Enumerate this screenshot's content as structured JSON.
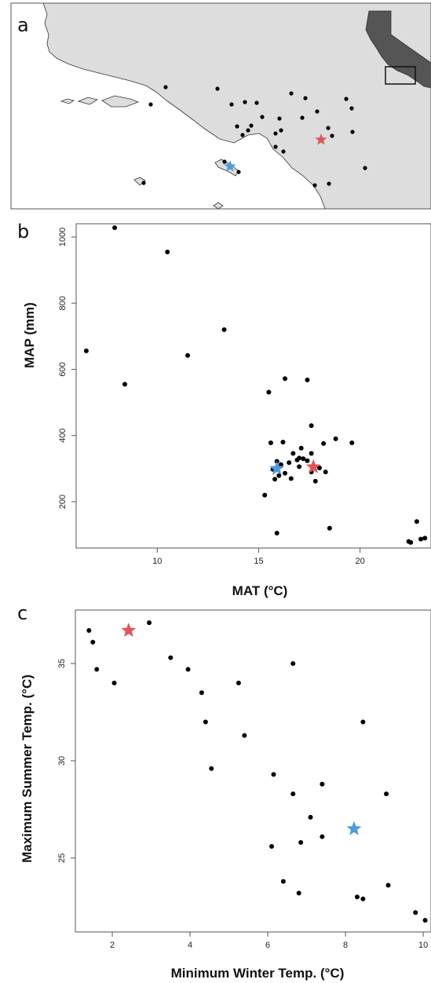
{
  "panel_labels": {
    "a": "a",
    "b": "b",
    "c": "c"
  },
  "colors": {
    "red_star": "#e05555",
    "blue_star": "#4a9be0",
    "points": "#000000",
    "land": "#dddddd",
    "california": "#555555"
  },
  "chart_data": [
    {
      "type": "map",
      "panel": "a",
      "sites": [
        [
          211,
          111
        ],
        [
          192,
          133
        ],
        [
          277,
          113
        ],
        [
          295,
          133
        ],
        [
          312,
          130
        ],
        [
          327,
          131
        ],
        [
          302,
          161
        ],
        [
          320,
          160
        ],
        [
          309,
          172
        ],
        [
          316,
          166
        ],
        [
          334,
          149
        ],
        [
          356,
          151
        ],
        [
          371,
          119
        ],
        [
          389,
          125
        ],
        [
          385,
          150
        ],
        [
          404,
          142
        ],
        [
          351,
          170
        ],
        [
          358,
          166
        ],
        [
          351,
          187
        ],
        [
          361,
          193
        ],
        [
          418,
          163
        ],
        [
          423,
          173
        ],
        [
          441,
          126
        ],
        [
          448,
          138
        ],
        [
          449,
          168
        ],
        [
          304,
          219
        ],
        [
          465,
          214
        ],
        [
          419,
          234
        ],
        [
          401,
          236
        ],
        [
          183,
          233
        ],
        [
          286,
          206
        ]
      ],
      "red_star": [
        409,
        178
      ],
      "blue_star": [
        293,
        212
      ]
    },
    {
      "type": "scatter",
      "panel": "b",
      "xlabel": "MAT (°C)",
      "ylabel": "MAP (mm)",
      "xlim": [
        6,
        23.5
      ],
      "ylim": [
        60,
        1040
      ],
      "xticks": [
        10,
        15,
        20
      ],
      "yticks": [
        200,
        400,
        600,
        800,
        1000
      ],
      "points": [
        [
          6.5,
          656
        ],
        [
          7.9,
          1028
        ],
        [
          8.4,
          555
        ],
        [
          10.5,
          955
        ],
        [
          11.5,
          642
        ],
        [
          13.3,
          720
        ],
        [
          15.5,
          531
        ],
        [
          16.3,
          572
        ],
        [
          17.4,
          568
        ],
        [
          17.6,
          430
        ],
        [
          18.8,
          390
        ],
        [
          19.6,
          378
        ],
        [
          15.6,
          378
        ],
        [
          16.2,
          380
        ],
        [
          18.2,
          376
        ],
        [
          17.1,
          362
        ],
        [
          16.7,
          346
        ],
        [
          17.6,
          346
        ],
        [
          17.0,
          332
        ],
        [
          17.2,
          330
        ],
        [
          17.4,
          324
        ],
        [
          16.9,
          326
        ],
        [
          16.5,
          318
        ],
        [
          15.9,
          322
        ],
        [
          16.1,
          312
        ],
        [
          17.0,
          306
        ],
        [
          18.0,
          302
        ],
        [
          15.7,
          298
        ],
        [
          16.3,
          286
        ],
        [
          16.6,
          270
        ],
        [
          16.0,
          279
        ],
        [
          15.8,
          268
        ],
        [
          17.8,
          262
        ],
        [
          17.6,
          290
        ],
        [
          18.3,
          290
        ],
        [
          15.3,
          220
        ],
        [
          15.9,
          105
        ],
        [
          18.5,
          120
        ],
        [
          22.4,
          80
        ],
        [
          22.5,
          77
        ],
        [
          22.8,
          140
        ],
        [
          23.0,
          87
        ],
        [
          23.2,
          90
        ]
      ],
      "red_star": [
        17.7,
        305
      ],
      "blue_star": [
        15.9,
        300
      ]
    },
    {
      "type": "scatter",
      "panel": "c",
      "xlabel": "Minimum Winter Temp. (°C)",
      "ylabel": "Maximum Summer Temp. (°C)",
      "xlim": [
        1.05,
        10.2
      ],
      "ylim": [
        21.2,
        37.75
      ],
      "xticks": [
        2,
        4,
        6,
        8,
        10
      ],
      "yticks": [
        25,
        30,
        35
      ],
      "points": [
        [
          1.4,
          36.7
        ],
        [
          1.5,
          36.1
        ],
        [
          1.6,
          34.7
        ],
        [
          2.05,
          34.0
        ],
        [
          2.95,
          37.1
        ],
        [
          3.5,
          35.3
        ],
        [
          3.95,
          34.7
        ],
        [
          4.3,
          33.5
        ],
        [
          4.4,
          32.0
        ],
        [
          4.55,
          29.6
        ],
        [
          5.25,
          34.0
        ],
        [
          5.4,
          31.3
        ],
        [
          6.1,
          25.6
        ],
        [
          6.15,
          29.3
        ],
        [
          6.4,
          23.8
        ],
        [
          6.65,
          28.3
        ],
        [
          6.65,
          35.0
        ],
        [
          6.8,
          23.2
        ],
        [
          6.85,
          25.8
        ],
        [
          7.1,
          27.1
        ],
        [
          7.4,
          28.8
        ],
        [
          7.4,
          26.1
        ],
        [
          8.3,
          23.0
        ],
        [
          8.45,
          22.9
        ],
        [
          8.45,
          32.0
        ],
        [
          9.05,
          28.3
        ],
        [
          9.1,
          23.6
        ],
        [
          9.8,
          22.2
        ],
        [
          10.05,
          21.8
        ]
      ],
      "red_star": [
        2.42,
        36.7
      ],
      "blue_star": [
        8.22,
        26.5
      ]
    }
  ]
}
